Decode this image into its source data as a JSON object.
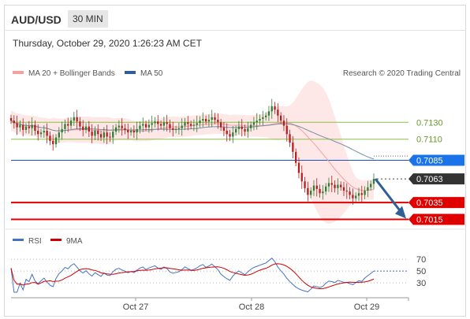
{
  "header": {
    "symbol": "AUD/USD",
    "timeframe": "30 MIN",
    "datetime": "Thursday, October 29, 2020 1:26:23 AM CET"
  },
  "legend": {
    "ma20_label": "MA 20 + Bollinger Bands",
    "ma50_label": "MA 50",
    "credit": "Research © 2020 Trading Central",
    "rsi_label": "RSI",
    "ma9_label": "9MA"
  },
  "colors": {
    "candle_up": "#2e7d32",
    "candle_down": "#b71c1c",
    "band_fill": "#fde3e3",
    "ma20": "#f4a1a1",
    "ma50": "#2f5f94",
    "pivot_line": "#1f4fd1",
    "pivot_label_bg": "#1a73e8",
    "support_red": "#e00000",
    "resistance_green": "#8bbf4a",
    "current_label_bg": "#333333",
    "arrow": "#2f5f94",
    "rsi_line": "#4472c4",
    "ma9_line": "#cc0000"
  },
  "chart_data": [
    {
      "type": "candlestick",
      "ylim": [
        0.7008,
        0.7176
      ],
      "x_ticks": [
        "Oct 27",
        "Oct 28",
        "Oct 29"
      ],
      "levels": [
        {
          "value": 0.713,
          "label": "0.7130",
          "kind": "resistance"
        },
        {
          "value": 0.711,
          "label": "0.7110",
          "kind": "resistance"
        },
        {
          "value": 0.7085,
          "label": "0.7085",
          "kind": "pivot"
        },
        {
          "value": 0.7063,
          "label": "0.7063",
          "kind": "current"
        },
        {
          "value": 0.7035,
          "label": "0.7035",
          "kind": "support"
        },
        {
          "value": 0.7015,
          "label": "0.7015",
          "kind": "support"
        }
      ],
      "ma50_end": 0.709,
      "arrow": {
        "from": 0.7063,
        "to": 0.7015
      },
      "closes": [
        0.7132,
        0.7129,
        0.7124,
        0.7127,
        0.7121,
        0.7125,
        0.7123,
        0.7127,
        0.712,
        0.7116,
        0.7118,
        0.712,
        0.7114,
        0.7108,
        0.7104,
        0.7112,
        0.7118,
        0.7122,
        0.7128,
        0.7126,
        0.7132,
        0.7136,
        0.7131,
        0.7125,
        0.7121,
        0.7125,
        0.7119,
        0.7114,
        0.712,
        0.7116,
        0.7112,
        0.7118,
        0.7113,
        0.7112,
        0.7119,
        0.7124,
        0.7126,
        0.7123,
        0.7121,
        0.7118,
        0.712,
        0.7118,
        0.7122,
        0.7126,
        0.7128,
        0.7124,
        0.7127,
        0.7129,
        0.7131,
        0.7128,
        0.7126,
        0.713,
        0.7128,
        0.7123,
        0.7121,
        0.7122,
        0.7123,
        0.7126,
        0.713,
        0.7128,
        0.7126,
        0.7127,
        0.7129,
        0.7132,
        0.7134,
        0.7131,
        0.7133,
        0.7136,
        0.7133,
        0.713,
        0.7124,
        0.712,
        0.7116,
        0.7113,
        0.7118,
        0.7122,
        0.7125,
        0.7122,
        0.7119,
        0.7123,
        0.7127,
        0.713,
        0.7132,
        0.7134,
        0.7136,
        0.7138,
        0.7143,
        0.7149,
        0.7145,
        0.7138,
        0.7132,
        0.7126,
        0.7116,
        0.7106,
        0.7095,
        0.7082,
        0.707,
        0.706,
        0.7052,
        0.7044,
        0.7049,
        0.7055,
        0.7051,
        0.7046,
        0.7048,
        0.7054,
        0.7058,
        0.7056,
        0.7052,
        0.7056,
        0.7053,
        0.7049,
        0.7048,
        0.7044,
        0.704,
        0.7043,
        0.7046,
        0.7044,
        0.7049,
        0.7053,
        0.7057,
        0.7063
      ]
    },
    {
      "type": "line",
      "ylim": [
        10,
        85
      ],
      "y_ticks": [
        "70",
        "50",
        "30"
      ],
      "rsi_last": 50
    }
  ]
}
